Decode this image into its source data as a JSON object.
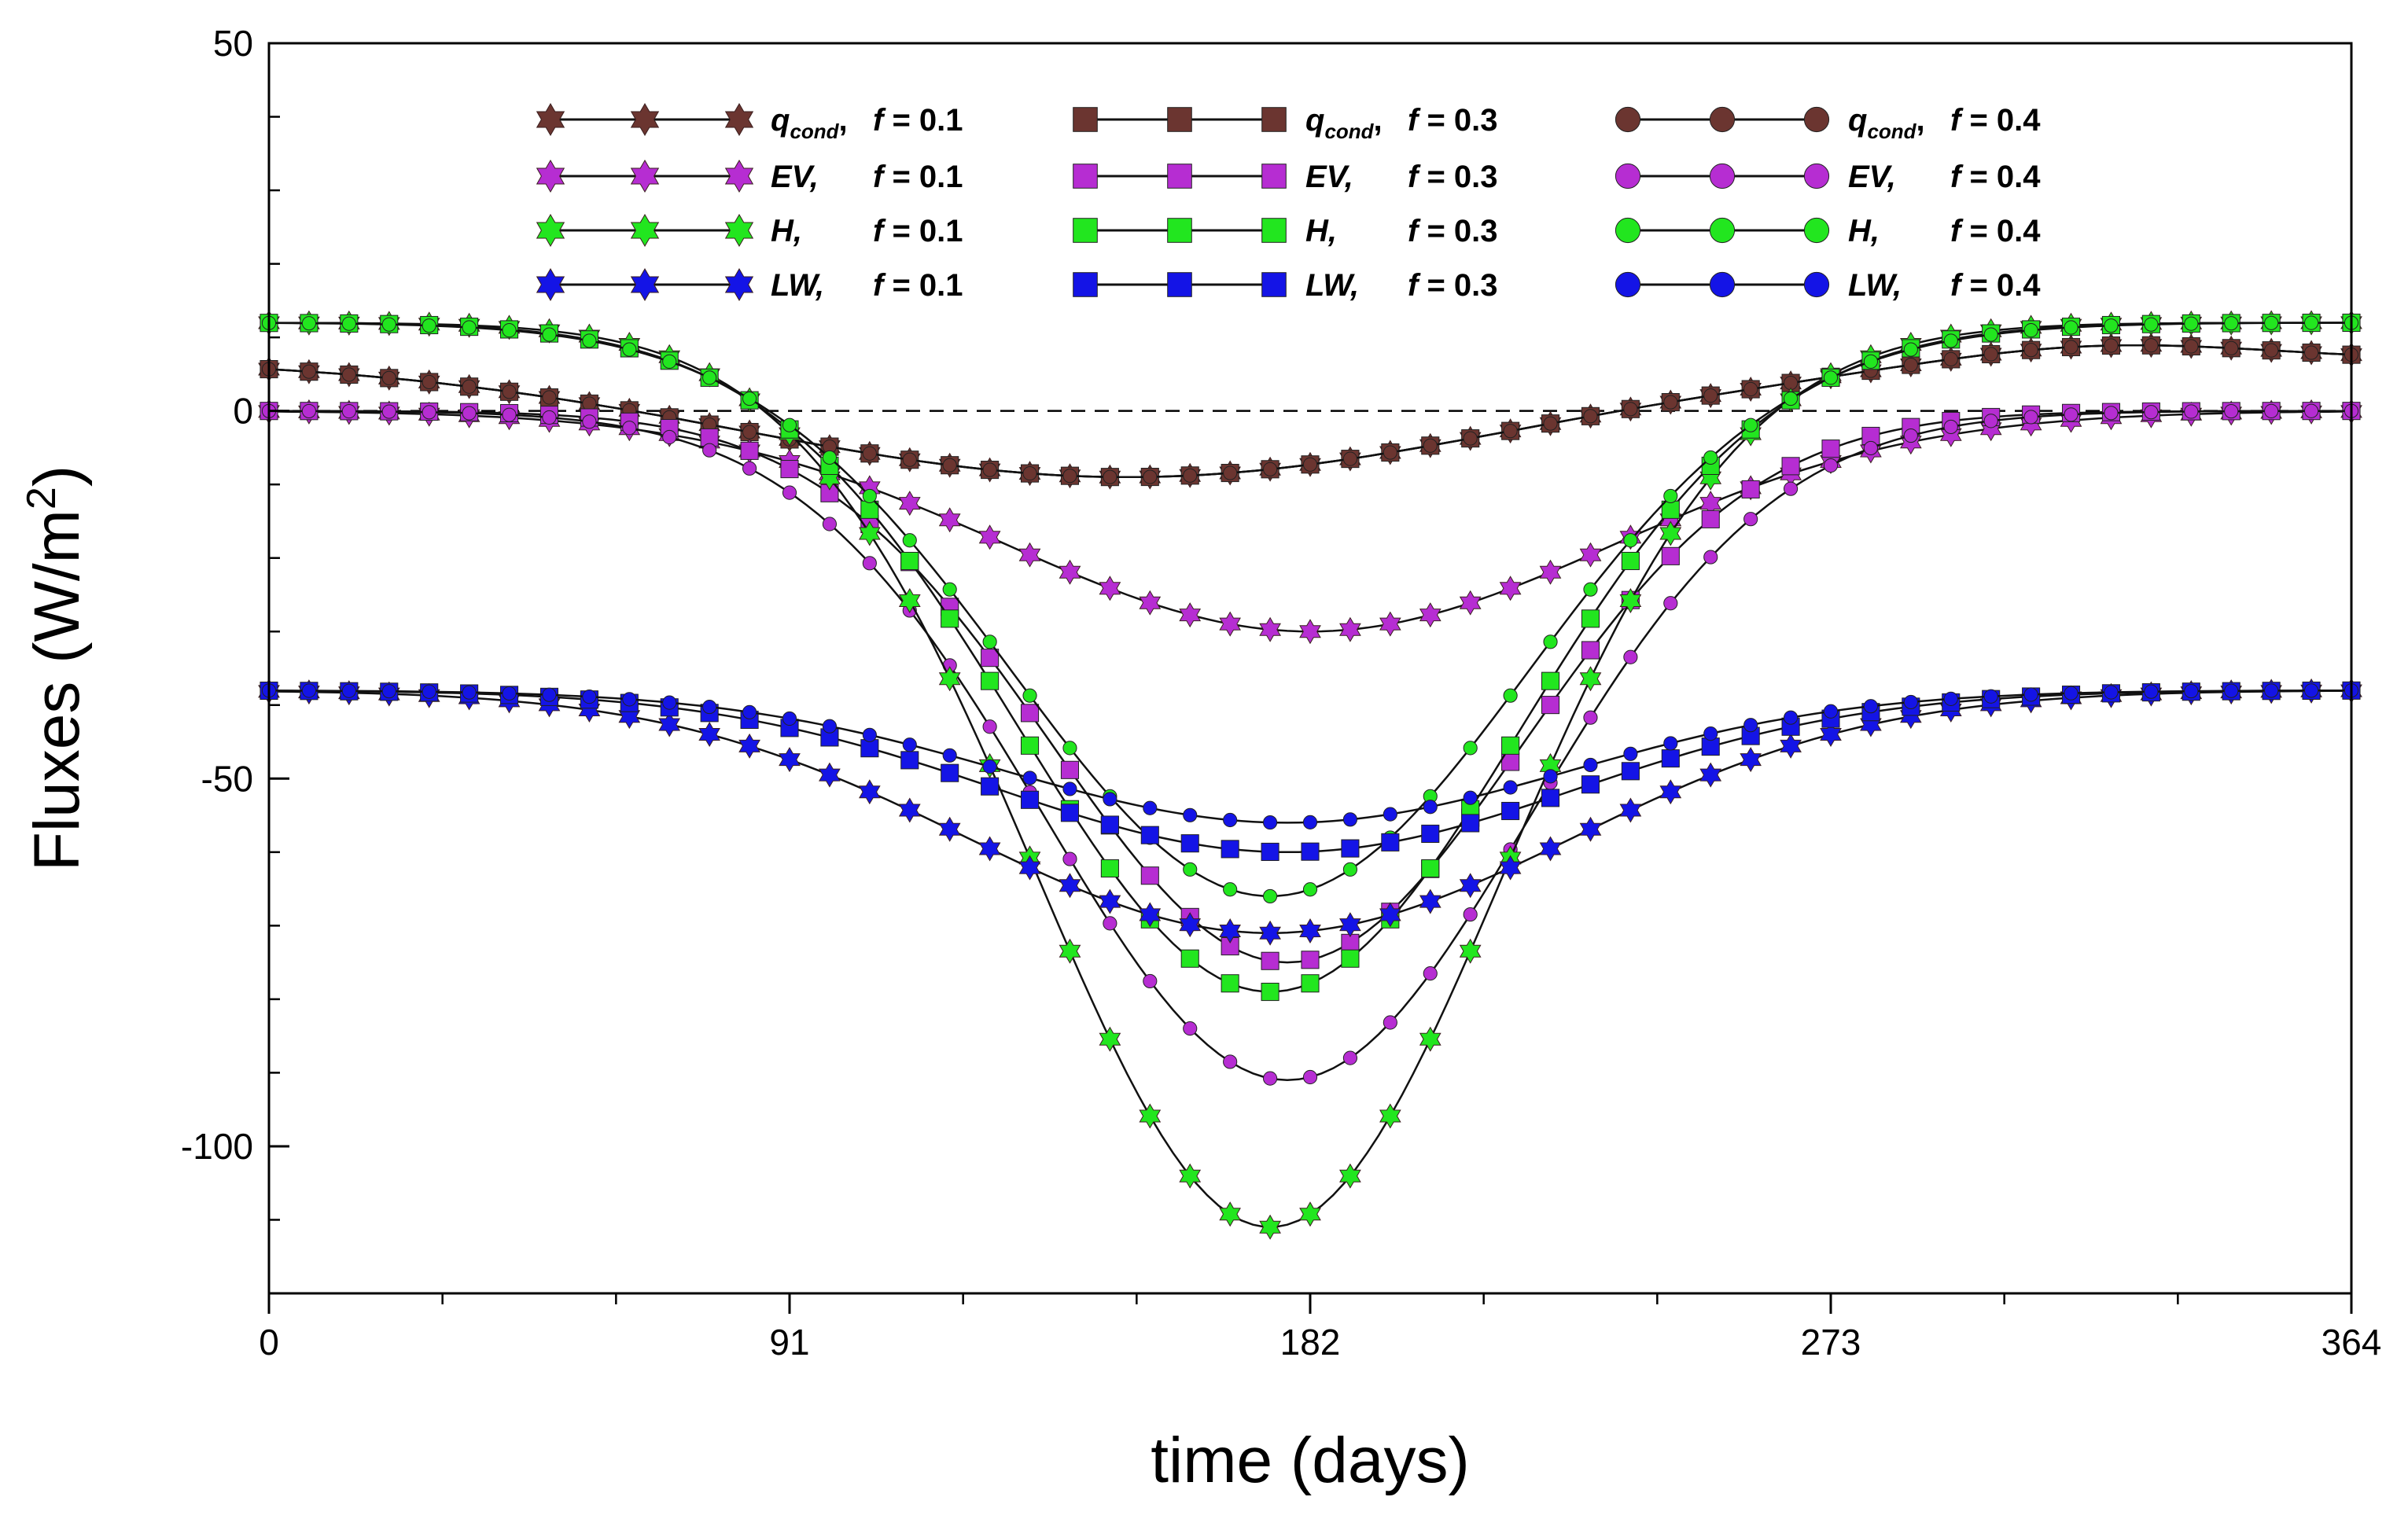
{
  "colors": {
    "q_cond": "#6B3530",
    "EV": "#B62DD2",
    "H": "#22E61F",
    "LW": "#1414E6",
    "axis": "#000000",
    "zero_line": "#000000"
  },
  "chart_data": {
    "type": "line",
    "title": "",
    "xlabel": "time (days)",
    "ylabel": "Fluxes (W/m²)",
    "ylabel_parts": {
      "main": "Fluxes (W/m",
      "sup": "2",
      "close": ")"
    },
    "xlim": [
      0,
      364
    ],
    "ylim": [
      -120,
      50
    ],
    "xticks": [
      0,
      91,
      182,
      273,
      364
    ],
    "xtick_labels": [
      "0",
      "91",
      "182",
      "273",
      "364"
    ],
    "yticks": [
      50,
      0,
      -50,
      -100
    ],
    "ytick_labels": [
      "50",
      "0",
      "-50",
      "-100"
    ],
    "zero_line": true,
    "legend_position": "top-center",
    "legend": [
      {
        "label_var": "q",
        "label_sub": "cond",
        "label_f": "f = 0.1",
        "marker": "star",
        "color_key": "q_cond"
      },
      {
        "label_var": "EV,",
        "label_f": "f = 0.1",
        "marker": "star",
        "color_key": "EV"
      },
      {
        "label_var": "H,",
        "label_f": "f = 0.1",
        "marker": "star",
        "color_key": "H"
      },
      {
        "label_var": "LW,",
        "label_f": "f = 0.1",
        "marker": "star",
        "color_key": "LW"
      },
      {
        "label_var": "q",
        "label_sub": "cond",
        "label_f": "f = 0.3",
        "marker": "square",
        "color_key": "q_cond"
      },
      {
        "label_var": "EV,",
        "label_f": "f = 0.3",
        "marker": "square",
        "color_key": "EV"
      },
      {
        "label_var": "H,",
        "label_f": "f = 0.3",
        "marker": "square",
        "color_key": "H"
      },
      {
        "label_var": "LW,",
        "label_f": "f = 0.3",
        "marker": "square",
        "color_key": "LW"
      },
      {
        "label_var": "q",
        "label_sub": "cond",
        "label_f": "f = 0.4",
        "marker": "circle",
        "color_key": "q_cond"
      },
      {
        "label_var": "EV,",
        "label_f": "f = 0.4",
        "marker": "circle",
        "color_key": "EV"
      },
      {
        "label_var": "H,",
        "label_f": "f = 0.4",
        "marker": "circle",
        "color_key": "H"
      },
      {
        "label_var": "LW,",
        "label_f": "f = 0.4",
        "marker": "circle",
        "color_key": "LW"
      }
    ],
    "series": [
      {
        "name": "q_cond, f = 0.1",
        "var": "q_cond",
        "f": 0.1,
        "marker": "star",
        "color_key": "q_cond",
        "start": 7,
        "min": -9,
        "min_day": 150,
        "width": 50,
        "zero_day": 227,
        "end": 7
      },
      {
        "name": "q_cond, f = 0.3",
        "var": "q_cond",
        "f": 0.3,
        "marker": "square",
        "color_key": "q_cond",
        "start": 7,
        "min": -9,
        "min_day": 150,
        "width": 50,
        "zero_day": 227,
        "end": 7
      },
      {
        "name": "q_cond, f = 0.4",
        "var": "q_cond",
        "f": 0.4,
        "marker": "circle",
        "color_key": "q_cond",
        "start": 7,
        "min": -9,
        "min_day": 150,
        "width": 50,
        "zero_day": 227,
        "end": 7
      },
      {
        "name": "EV, f = 0.1",
        "var": "EV",
        "f": 0.1,
        "marker": "star",
        "color_key": "EV",
        "start": 0,
        "min": -30,
        "min_day": 182,
        "width": 75,
        "end": 0
      },
      {
        "name": "EV, f = 0.3",
        "var": "EV",
        "f": 0.3,
        "marker": "square",
        "color_key": "EV",
        "start": 0,
        "min": -75,
        "min_day": 178,
        "width": 58,
        "end": 0
      },
      {
        "name": "EV, f = 0.4",
        "var": "EV",
        "f": 0.4,
        "marker": "circle",
        "color_key": "EV",
        "start": 0,
        "min": -91,
        "min_day": 178,
        "width": 60,
        "end": 0
      },
      {
        "name": "H, f = 0.1",
        "var": "H",
        "f": 0.1,
        "marker": "star",
        "color_key": "H",
        "start": 12,
        "min": -111,
        "min_day": 175,
        "width": 58,
        "end": 12
      },
      {
        "name": "H, f = 0.3",
        "var": "H",
        "f": 0.3,
        "marker": "square",
        "color_key": "H",
        "start": 12,
        "min": -79,
        "min_day": 175,
        "width": 62,
        "end": 12
      },
      {
        "name": "H, f = 0.4",
        "var": "H",
        "f": 0.4,
        "marker": "circle",
        "color_key": "H",
        "start": 12,
        "min": -66,
        "min_day": 175,
        "width": 64,
        "end": 12
      },
      {
        "name": "LW, f = 0.1",
        "var": "LW",
        "f": 0.1,
        "marker": "star",
        "color_key": "LW",
        "start": -38,
        "min": -71,
        "min_day": 175,
        "width": 75,
        "end": -38
      },
      {
        "name": "LW, f = 0.3",
        "var": "LW",
        "f": 0.3,
        "marker": "square",
        "color_key": "LW",
        "start": -38,
        "min": -60,
        "min_day": 178,
        "width": 72,
        "end": -38
      },
      {
        "name": "LW, f = 0.4",
        "var": "LW",
        "f": 0.4,
        "marker": "circle",
        "color_key": "LW",
        "start": -38,
        "min": -56,
        "min_day": 178,
        "width": 70,
        "end": -38
      }
    ]
  }
}
